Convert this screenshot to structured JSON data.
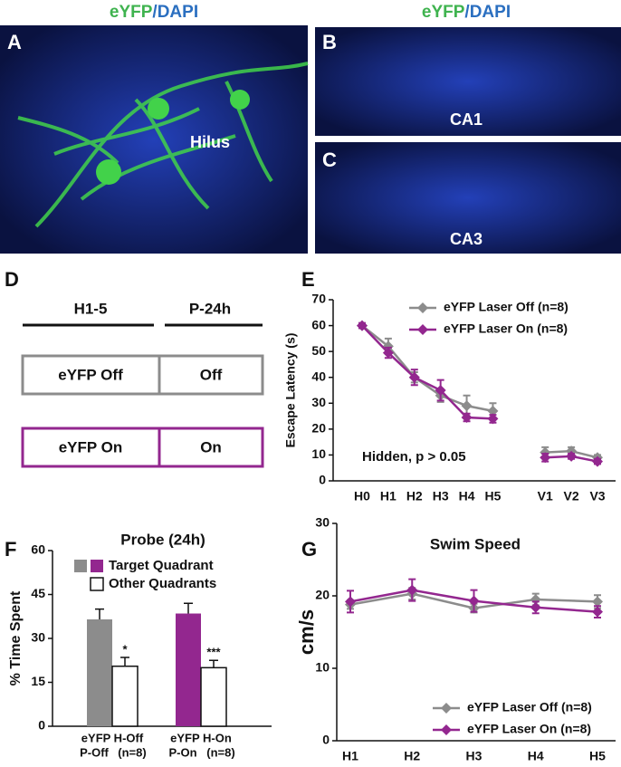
{
  "headers": [
    {
      "parts": [
        {
          "text": "eYFP",
          "color": "#3fb34f"
        },
        {
          "text": "/DAPI",
          "color": "#2b6fc0"
        }
      ]
    },
    {
      "parts": [
        {
          "text": "eYFP",
          "color": "#3fb34f"
        },
        {
          "text": "/DAPI",
          "color": "#2b6fc0"
        }
      ]
    }
  ],
  "image_panels": [
    {
      "label": "A",
      "caption": "Hilus"
    },
    {
      "label": "B",
      "caption": "CA1"
    },
    {
      "label": "C",
      "caption": "CA3"
    }
  ],
  "design_panel": {
    "label": "D",
    "columns": [
      "H1-5",
      "P-24h"
    ],
    "rows": [
      {
        "cells": [
          "eYFP Off",
          "Off"
        ],
        "color": "#8c8c8c"
      },
      {
        "cells": [
          "eYFP On",
          "On"
        ],
        "color": "#93278f"
      }
    ]
  },
  "chart_data": [
    {
      "type": "line",
      "panel_label": "E",
      "y_label": "Escape Latency (s)",
      "annotation": "Hidden, p > 0.05",
      "categories": [
        "H0",
        "H1",
        "H2",
        "H3",
        "H4",
        "H5",
        null,
        "V1",
        "V2",
        "V3"
      ],
      "ylim": [
        0,
        70
      ],
      "yticks": [
        0,
        10,
        20,
        30,
        40,
        50,
        60,
        70
      ],
      "legend": "upper right",
      "series": [
        {
          "name": "eYFP Laser Off (n=8)",
          "color": "#8c8c8c",
          "values": [
            60,
            52,
            40,
            33,
            29,
            27,
            null,
            11,
            11.5,
            9
          ],
          "errors": [
            1,
            3,
            2,
            2.5,
            4,
            3,
            null,
            2,
            1.5,
            1
          ]
        },
        {
          "name": "eYFP Laser On (n=8)",
          "color": "#93278f",
          "values": [
            60,
            49.5,
            40,
            35,
            24.5,
            24,
            null,
            9,
            9.5,
            7.5
          ],
          "errors": [
            1,
            2,
            3,
            4,
            1.5,
            1.5,
            null,
            1.5,
            1,
            1
          ]
        }
      ]
    },
    {
      "type": "bar",
      "panel_label": "F",
      "title": "Probe (24h)",
      "y_label": "% Time Spent",
      "categories": [
        "eYFP H-Off",
        "eYFP H-On"
      ],
      "category_sublabels": [
        "P-Off",
        "P-On"
      ],
      "sublabel_color": "#e0262b",
      "category_notes": [
        "(n=8)",
        "(n=8)"
      ],
      "ylim": [
        0,
        60
      ],
      "yticks": [
        0,
        15,
        30,
        45,
        60
      ],
      "series": [
        {
          "name": "Target Quadrant",
          "colors": [
            "#8c8c8c",
            "#93278f"
          ],
          "values": [
            36.5,
            38.5
          ],
          "errors": [
            3.5,
            3.5
          ]
        },
        {
          "name": "Other Quadrants",
          "color": "#ffffff",
          "values": [
            20.5,
            20
          ],
          "errors": [
            3,
            2.5
          ],
          "annotations": [
            "*",
            "***"
          ]
        }
      ]
    },
    {
      "type": "line",
      "panel_label": "G",
      "title": "Swim Speed",
      "y_label": "cm/s",
      "categories": [
        "H1",
        "H2",
        "H3",
        "H4",
        "H5"
      ],
      "ylim": [
        0,
        30
      ],
      "yticks": [
        0,
        10,
        20,
        30
      ],
      "legend": "lower right",
      "series": [
        {
          "name": "eYFP Laser Off (n=8)",
          "color": "#8c8c8c",
          "values": [
            18.8,
            20.3,
            18.3,
            19.5,
            19.2
          ],
          "errors": [
            0.6,
            0.8,
            0.6,
            0.8,
            0.9
          ]
        },
        {
          "name": "eYFP Laser On (n=8)",
          "color": "#93278f",
          "values": [
            19.2,
            20.8,
            19.3,
            18.4,
            17.8
          ],
          "errors": [
            1.5,
            1.5,
            1.5,
            0.8,
            0.8
          ]
        }
      ]
    }
  ]
}
